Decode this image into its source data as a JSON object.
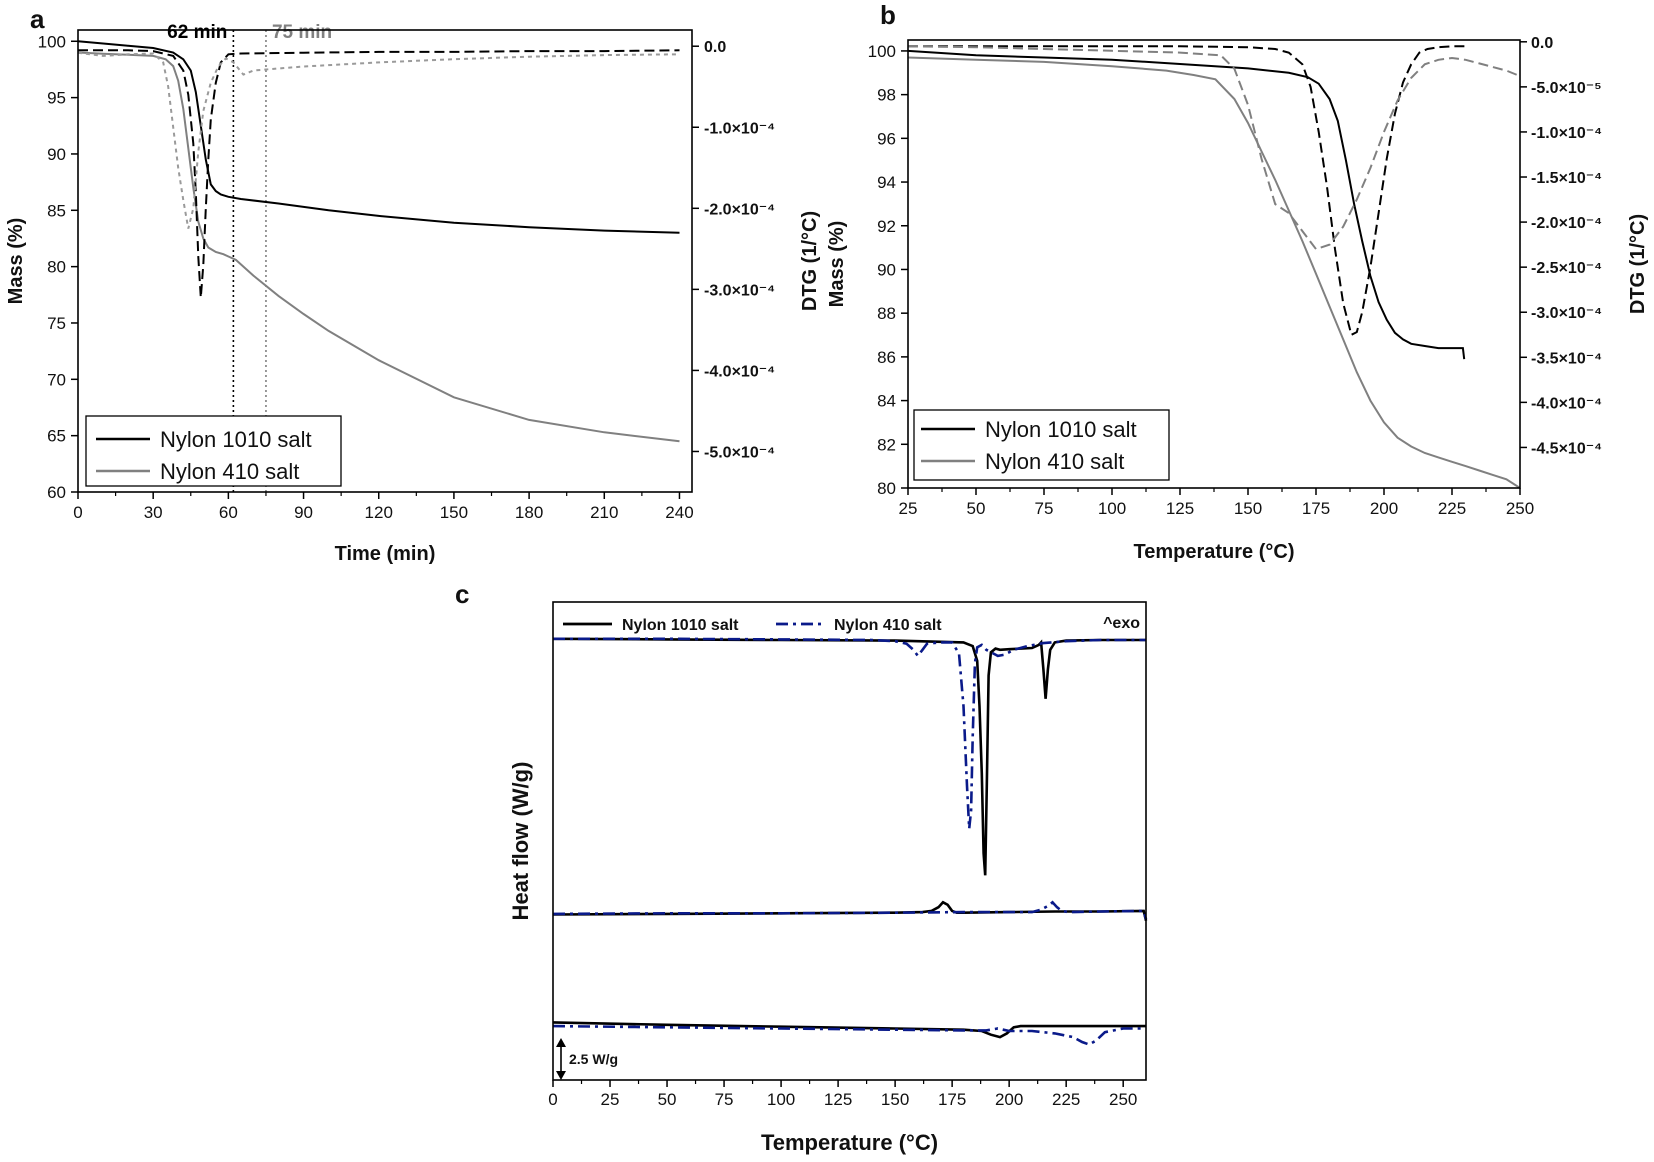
{
  "colors": {
    "black": "#000000",
    "gray": "#808080",
    "light_gray": "#9a9a9a",
    "navy": "#0a1a8a"
  },
  "chart_data": [
    {
      "panel": "a",
      "type": "line",
      "title": "",
      "xlabel": "Time (min)",
      "ylabel": "Mass (%)",
      "y2label": "DTG (1/°C)",
      "xlim": [
        0,
        245
      ],
      "ylim": [
        60,
        101
      ],
      "y2lim": [
        -0.00055,
        2e-05
      ],
      "xticks": [
        0,
        30,
        60,
        90,
        120,
        150,
        180,
        210,
        240
      ],
      "yticks": [
        60,
        65,
        70,
        75,
        80,
        85,
        90,
        95,
        100
      ],
      "y2ticks": [
        0,
        -0.0001,
        -0.0002,
        -0.0003,
        -0.0004,
        -0.0005
      ],
      "y2tick_labels": [
        "0.0",
        "-1.0×10⁻⁴",
        "-2.0×10⁻⁴",
        "-3.0×10⁻⁴",
        "-4.0×10⁻⁴",
        "-5.0×10⁻⁴"
      ],
      "annotations": [
        {
          "label": "62 min",
          "x": 62,
          "color": "#000000"
        },
        {
          "label": "75 min",
          "x": 75,
          "color": "#808080"
        }
      ],
      "legend": {
        "position": "bottom-left",
        "entries": [
          "Nylon 1010 salt",
          "Nylon 410 salt"
        ]
      },
      "series": [
        {
          "name": "Nylon 1010 salt",
          "axis": "y",
          "style": "solid",
          "color": "#000000",
          "x": [
            0,
            10,
            20,
            30,
            38,
            42,
            45,
            47,
            49,
            51,
            53,
            55,
            57,
            60,
            65,
            80,
            100,
            120,
            150,
            180,
            210,
            240
          ],
          "y": [
            100,
            99.8,
            99.6,
            99.4,
            99.0,
            98.4,
            97.4,
            95.5,
            92.5,
            89.5,
            87.3,
            86.7,
            86.4,
            86.2,
            86.0,
            85.6,
            85.0,
            84.5,
            83.9,
            83.5,
            83.2,
            83.0
          ]
        },
        {
          "name": "Nylon 410 salt",
          "axis": "y",
          "style": "solid",
          "color": "#808080",
          "x": [
            0,
            10,
            20,
            30,
            35,
            38,
            40,
            42,
            44,
            46,
            48,
            50,
            52,
            55,
            58,
            60,
            63,
            66,
            70,
            80,
            90,
            100,
            120,
            150,
            180,
            210,
            240
          ],
          "y": [
            99,
            98.9,
            98.8,
            98.7,
            98.4,
            97.8,
            96.5,
            94.0,
            90.5,
            87.0,
            84.0,
            82.5,
            81.7,
            81.3,
            81.1,
            80.9,
            80.6,
            80.0,
            79.2,
            77.4,
            75.8,
            74.3,
            71.7,
            68.4,
            66.4,
            65.3,
            64.5
          ]
        },
        {
          "name": "Nylon 1010 salt DTG",
          "axis": "y2",
          "style": "dashed",
          "color": "#000000",
          "x": [
            0,
            20,
            30,
            38,
            42,
            44,
            46,
            47,
            48,
            49,
            50,
            51,
            52,
            53,
            55,
            57,
            60,
            65,
            90,
            120,
            150,
            180,
            210,
            240
          ],
          "y": [
            -5e-06,
            -5e-06,
            -6e-06,
            -1.2e-05,
            -3e-05,
            -6e-05,
            -0.00012,
            -0.00018,
            -0.00026,
            -0.00031,
            -0.00027,
            -0.0002,
            -0.00014,
            -9e-05,
            -4.5e-05,
            -2e-05,
            -1e-05,
            -9e-06,
            -8e-06,
            -7e-06,
            -7e-06,
            -6e-06,
            -6e-06,
            -5e-06
          ]
        },
        {
          "name": "Nylon 410 salt DTG",
          "axis": "y2",
          "style": "dotted",
          "color": "#9a9a9a",
          "x": [
            0,
            10,
            20,
            30,
            34,
            36,
            38,
            40,
            42,
            44,
            46,
            48,
            50,
            53,
            56,
            59,
            62,
            66,
            70,
            90,
            120,
            150,
            180,
            210,
            240
          ],
          "y": [
            -8e-06,
            -1.2e-05,
            -1e-05,
            -9e-06,
            -2e-05,
            -5e-05,
            -0.0001,
            -0.00015,
            -0.00019,
            -0.000225,
            -0.0002,
            -0.00013,
            -8e-05,
            -4.5e-05,
            -2.5e-05,
            -1.5e-05,
            -2e-05,
            -3.5e-05,
            -3e-05,
            -2.5e-05,
            -2e-05,
            -1.6e-05,
            -1.3e-05,
            -1.1e-05,
            -1e-05
          ]
        }
      ]
    },
    {
      "panel": "b",
      "type": "line",
      "title": "",
      "xlabel": "Temperature (°C)",
      "ylabel": "Mass (%)",
      "y2label": "DTG (1/°C)",
      "xlim": [
        25,
        250
      ],
      "ylim": [
        80,
        100.5
      ],
      "y2lim": [
        -0.000495,
        2e-06
      ],
      "xticks": [
        25,
        50,
        75,
        100,
        125,
        150,
        175,
        200,
        225,
        250
      ],
      "yticks": [
        80,
        82,
        84,
        86,
        88,
        90,
        92,
        94,
        96,
        98,
        100
      ],
      "y2ticks": [
        0,
        -5e-05,
        -0.0001,
        -0.00015,
        -0.0002,
        -0.00025,
        -0.0003,
        -0.00035,
        -0.0004,
        -0.00045
      ],
      "y2tick_labels": [
        "0.0",
        "-5.0×10⁻⁵",
        "-1.0×10⁻⁴",
        "-1.5×10⁻⁴",
        "-2.0×10⁻⁴",
        "-2.5×10⁻⁴",
        "-3.0×10⁻⁴",
        "-3.5×10⁻⁴",
        "-4.0×10⁻⁴",
        "-4.5×10⁻⁴"
      ],
      "legend": {
        "position": "bottom-left",
        "entries": [
          "Nylon 1010 salt",
          "Nylon 410 salt"
        ]
      },
      "series": [
        {
          "name": "Nylon 1010 salt",
          "axis": "y",
          "style": "solid",
          "color": "#000000",
          "x": [
            25,
            50,
            75,
            100,
            125,
            150,
            165,
            172,
            176,
            180,
            183,
            186,
            189,
            192,
            195,
            198,
            201,
            204,
            207,
            210,
            215,
            220,
            225,
            229,
            229.5
          ],
          "y": [
            100,
            99.8,
            99.7,
            99.6,
            99.4,
            99.2,
            99.0,
            98.8,
            98.5,
            97.8,
            96.8,
            95.0,
            93.0,
            91.3,
            89.7,
            88.5,
            87.7,
            87.1,
            86.8,
            86.6,
            86.5,
            86.4,
            86.4,
            86.4,
            85.9
          ]
        },
        {
          "name": "Nylon 410 salt",
          "axis": "y",
          "style": "solid",
          "color": "#808080",
          "x": [
            25,
            50,
            75,
            100,
            120,
            130,
            138,
            145,
            150,
            155,
            160,
            165,
            170,
            175,
            180,
            185,
            190,
            195,
            200,
            205,
            210,
            215,
            220,
            225,
            230,
            235,
            240,
            245,
            250
          ],
          "y": [
            99.7,
            99.6,
            99.5,
            99.3,
            99.1,
            98.9,
            98.7,
            97.8,
            96.7,
            95.4,
            94.1,
            92.7,
            91.3,
            89.8,
            88.3,
            86.8,
            85.3,
            84.0,
            83.0,
            82.3,
            81.9,
            81.6,
            81.4,
            81.2,
            81.0,
            80.8,
            80.6,
            80.4,
            80.0
          ]
        },
        {
          "name": "Nylon 1010 salt DTG",
          "axis": "y2",
          "style": "dashed",
          "color": "#000000",
          "x": [
            25,
            50,
            75,
            100,
            125,
            150,
            160,
            165,
            170,
            173,
            176,
            179,
            182,
            185,
            188,
            190,
            192,
            195,
            198,
            201,
            204,
            207,
            210,
            213,
            216,
            220,
            225,
            230
          ],
          "y": [
            -5e-06,
            -5e-06,
            -5e-06,
            -5e-06,
            -5e-06,
            -6e-06,
            -8e-06,
            -1.2e-05,
            -2.5e-05,
            -5e-05,
            -0.0001,
            -0.00016,
            -0.00023,
            -0.00029,
            -0.000325,
            -0.000322,
            -0.0003,
            -0.00025,
            -0.00019,
            -0.00013,
            -8e-05,
            -4.5e-05,
            -2.5e-05,
            -1.2e-05,
            -8e-06,
            -6e-06,
            -5e-06,
            -5e-06
          ]
        },
        {
          "name": "Nylon 410 salt DTG",
          "axis": "y2",
          "style": "dashed",
          "color": "#808080",
          "x": [
            25,
            50,
            75,
            100,
            125,
            140,
            145,
            150,
            155,
            160,
            165,
            170,
            175,
            180,
            185,
            190,
            195,
            200,
            205,
            210,
            215,
            220,
            225,
            230,
            235,
            240,
            245,
            250
          ],
          "y": [
            -5e-06,
            -6e-06,
            -8e-06,
            -1e-05,
            -1.2e-05,
            -1.5e-05,
            -3e-05,
            -7e-05,
            -0.00013,
            -0.00018,
            -0.00019,
            -0.00021,
            -0.00023,
            -0.000225,
            -0.000205,
            -0.000175,
            -0.00014,
            -0.0001,
            -6.5e-05,
            -4e-05,
            -2.5e-05,
            -2e-05,
            -1.8e-05,
            -2e-05,
            -2.4e-05,
            -2.8e-05,
            -3.2e-05,
            -3.8e-05
          ]
        }
      ]
    },
    {
      "panel": "c",
      "type": "line",
      "title": "",
      "xlabel": "Temperature (°C)",
      "ylabel": "Heat flow (W/g)",
      "xlim": [
        0,
        260
      ],
      "ylim": [
        -24,
        3
      ],
      "xticks": [
        0,
        25,
        50,
        75,
        100,
        125,
        150,
        175,
        200,
        225,
        250
      ],
      "annotations": [
        {
          "label": "^exo",
          "position": "top-right"
        },
        {
          "label": "2.5 W/g",
          "position": "bottom-left",
          "kind": "scale-bar"
        }
      ],
      "legend": {
        "position": "top",
        "entries": [
          "Nylon 1010 salt",
          "Nylon 410 salt"
        ]
      },
      "series": [
        {
          "name": "Nylon 1010 salt (1st heating)",
          "style": "solid",
          "color": "#000000",
          "x": [
            0,
            50,
            100,
            150,
            180,
            184,
            186,
            187,
            188,
            188.8,
            189.5,
            190.2,
            191,
            192,
            194,
            196,
            200,
            205,
            210,
            213,
            214,
            215,
            216,
            217,
            218,
            220,
            225,
            240,
            260
          ],
          "y": [
            0,
            -0.05,
            -0.1,
            -0.15,
            -0.3,
            -0.6,
            -1.8,
            -5.5,
            -11,
            -17.5,
            -19.3,
            -12,
            -3,
            -1.1,
            -0.8,
            -0.9,
            -0.85,
            -0.8,
            -0.75,
            -0.5,
            -0.3,
            -2.5,
            -4.9,
            -2.5,
            -0.9,
            -0.3,
            -0.15,
            -0.1,
            -0.1
          ]
        },
        {
          "name": "Nylon 410 salt (1st heating)",
          "style": "dashdot",
          "color": "#0a1a8a",
          "x": [
            0,
            50,
            100,
            140,
            150,
            155,
            158,
            160,
            162,
            164,
            170,
            175,
            178,
            180,
            181.5,
            182.5,
            183.3,
            184,
            185,
            186,
            188,
            190,
            195,
            198,
            202,
            208,
            215,
            225,
            240,
            260
          ],
          "y": [
            0,
            0,
            -0.05,
            -0.1,
            -0.2,
            -0.4,
            -0.9,
            -1.4,
            -0.9,
            -0.4,
            -0.3,
            -0.3,
            -1.2,
            -5.5,
            -12,
            -15.5,
            -14,
            -8,
            -2,
            -0.7,
            -0.5,
            -0.9,
            -1.4,
            -1.3,
            -0.9,
            -0.6,
            -0.35,
            -0.2,
            -0.1,
            -0.1
          ]
        },
        {
          "name": "Nylon 1010 salt (cooling)",
          "style": "solid",
          "color": "#000000",
          "x": [
            0,
            50,
            100,
            150,
            162,
            166,
            169,
            171,
            173,
            175,
            177,
            180,
            200,
            220,
            240,
            259,
            260
          ],
          "y": [
            -22.5,
            -22.45,
            -22.4,
            -22.35,
            -22.3,
            -22.2,
            -21.9,
            -21.5,
            -21.7,
            -22.2,
            -22.35,
            -22.35,
            -22.3,
            -22.25,
            -22.25,
            -22.2,
            -23.0
          ]
        },
        {
          "name": "Nylon 410 salt (cooling)",
          "style": "dashdot",
          "color": "#0a1a8a",
          "x": [
            0,
            50,
            100,
            150,
            180,
            200,
            210,
            214,
            217,
            219,
            221,
            223,
            226,
            240,
            259,
            260
          ],
          "y": [
            -22.45,
            -22.4,
            -22.4,
            -22.35,
            -22.3,
            -22.3,
            -22.3,
            -22.1,
            -21.8,
            -21.5,
            -21.9,
            -22.2,
            -22.3,
            -22.25,
            -22.2,
            -22.9
          ]
        },
        {
          "name": "Nylon 1010 salt (2nd heating)",
          "style": "solid",
          "color": "#000000",
          "x": [
            0,
            50,
            100,
            150,
            180,
            188,
            192,
            196,
            199,
            202,
            205,
            210,
            230,
            260
          ],
          "y": [
            -31.3,
            -31.5,
            -31.65,
            -31.8,
            -31.9,
            -32.0,
            -32.3,
            -32.5,
            -32.2,
            -31.7,
            -31.6,
            -31.6,
            -31.6,
            -31.6
          ]
        },
        {
          "name": "Nylon 410 salt (2nd heating)",
          "style": "dashdot",
          "color": "#0a1a8a",
          "x": [
            0,
            50,
            100,
            150,
            180,
            190,
            195,
            200,
            210,
            220,
            228,
            232,
            235,
            238,
            242,
            250,
            260
          ],
          "y": [
            -31.6,
            -31.7,
            -31.8,
            -31.9,
            -31.95,
            -31.95,
            -31.8,
            -32.0,
            -32.0,
            -32.2,
            -32.5,
            -32.9,
            -33.1,
            -32.8,
            -32.1,
            -31.8,
            -31.8
          ]
        }
      ]
    }
  ]
}
